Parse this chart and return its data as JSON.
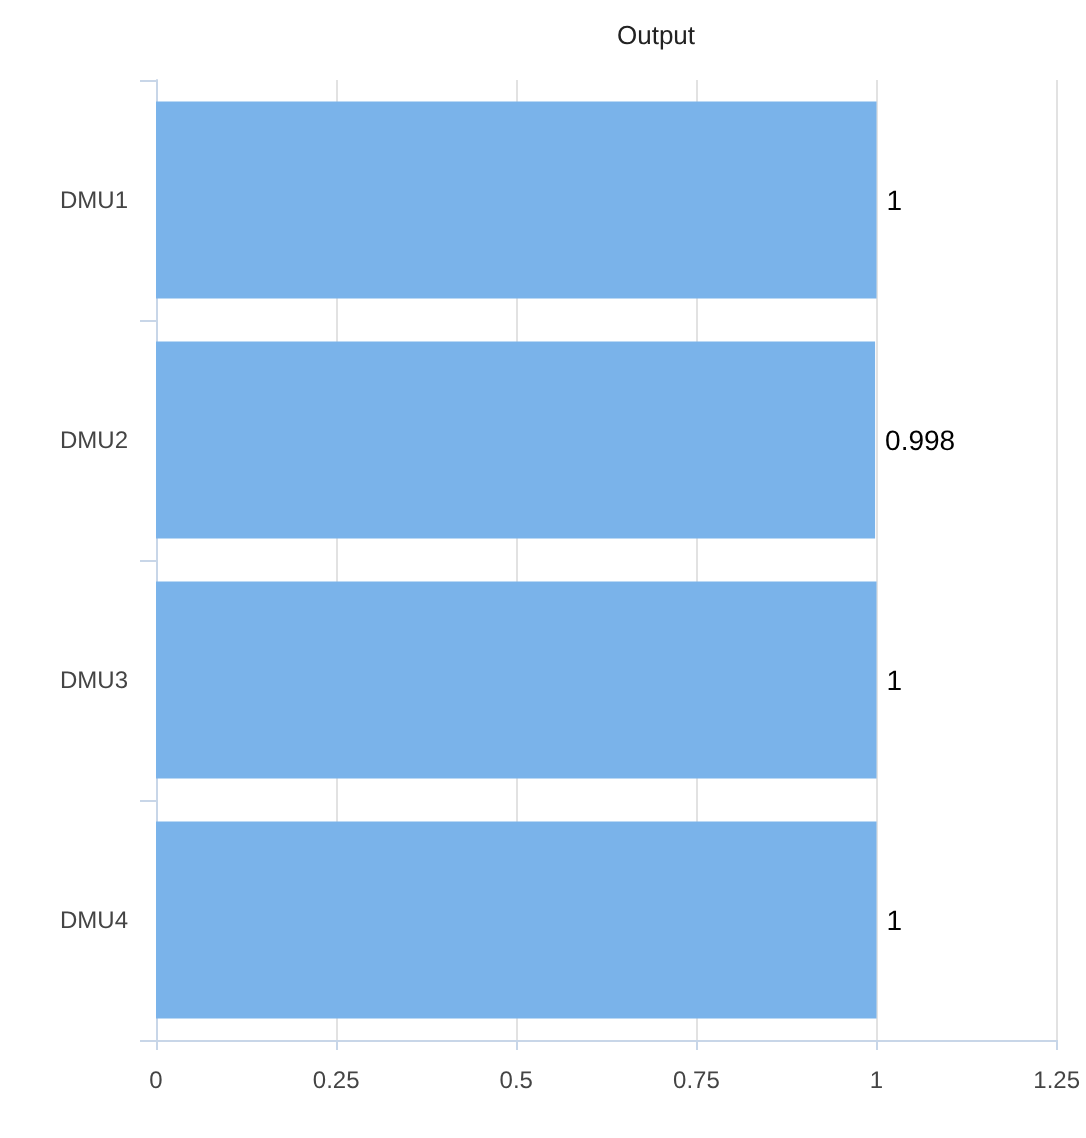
{
  "chart_data": {
    "type": "bar",
    "orientation": "horizontal",
    "title": "Output",
    "categories": [
      "DMU1",
      "DMU2",
      "DMU3",
      "DMU4"
    ],
    "values": [
      1,
      0.998,
      1,
      1
    ],
    "color": "#7ab3ea",
    "xlim": [
      0,
      1.25
    ],
    "xticks": [
      0,
      0.25,
      0.5,
      0.75,
      1,
      1.25
    ],
    "grid": "x",
    "data_labels": true
  }
}
